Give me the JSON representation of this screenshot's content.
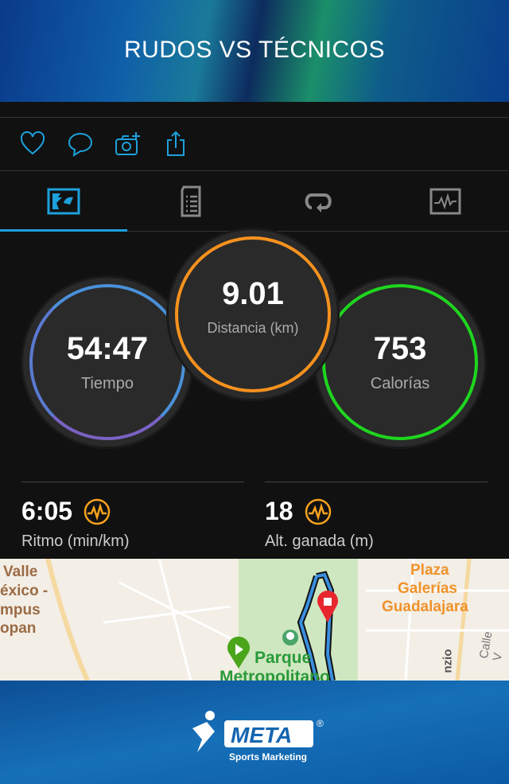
{
  "header": {
    "title": "RUDOS VS TÉCNICOS"
  },
  "actions": [
    {
      "icon": "heart-icon"
    },
    {
      "icon": "comment-icon"
    },
    {
      "icon": "camera-add-icon"
    },
    {
      "icon": "share-icon"
    }
  ],
  "tabs": [
    {
      "icon": "overview-icon",
      "active": true
    },
    {
      "icon": "details-icon",
      "active": false
    },
    {
      "icon": "laps-icon",
      "active": false
    },
    {
      "icon": "charts-icon",
      "active": false
    }
  ],
  "rings": {
    "time": {
      "value": "54:47",
      "label": "Tiempo",
      "color": "#4a90d9"
    },
    "distance": {
      "value": "9.01",
      "label": "Distancia (km)",
      "color": "#f7921e"
    },
    "calories": {
      "value": "753",
      "label": "Calorías",
      "color": "#1ed61e"
    }
  },
  "stats": [
    {
      "value": "6:05",
      "label": "Ritmo (min/km)"
    },
    {
      "value": "18",
      "label": "Alt. ganada (m)"
    }
  ],
  "colors": {
    "accent": "#1da1dc",
    "badge": "#f7a21e"
  },
  "map": {
    "labels": [
      "Valle",
      "éxico -",
      "mpus",
      "opan",
      "Plaza",
      "Galerías",
      "Guadalajara",
      "Parque",
      "Metropolitano",
      "nzio",
      "Calle V"
    ]
  },
  "footer": {
    "logo_text": "META",
    "logo_sub": "Sports Marketing"
  }
}
